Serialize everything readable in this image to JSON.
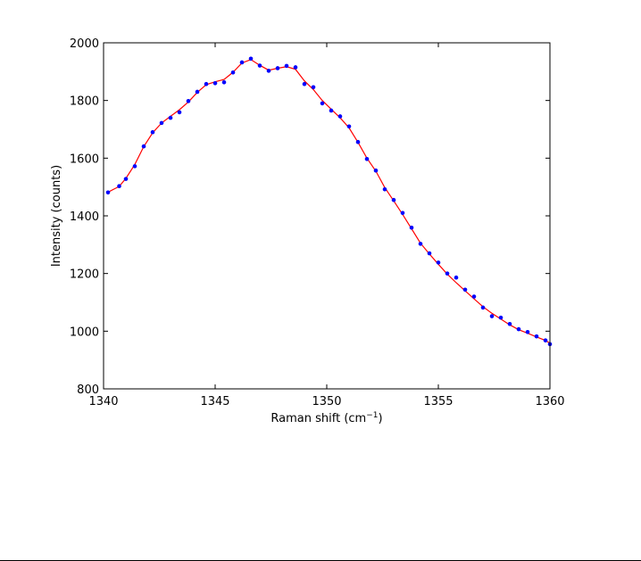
{
  "chart_data": {
    "type": "line",
    "title": "",
    "xlabel": "Raman shift (cm",
    "xlabel_sup": "−1",
    "xlabel_close": ")",
    "ylabel": "Intensity (counts)",
    "xlim": [
      1340,
      1360
    ],
    "ylim": [
      800,
      2000
    ],
    "xticks": [
      1340,
      1345,
      1350,
      1355,
      1360
    ],
    "yticks": [
      800,
      1000,
      1200,
      1400,
      1600,
      1800,
      2000
    ],
    "grid": false,
    "legend": "none",
    "series": [
      {
        "type": "scatter",
        "color": "#0000ff",
        "x": [
          1340.2,
          1340.7,
          1341.0,
          1341.4,
          1341.8,
          1342.2,
          1342.6,
          1343.0,
          1343.4,
          1343.8,
          1344.2,
          1344.6,
          1345.0,
          1345.4,
          1345.8,
          1346.2,
          1346.6,
          1347.0,
          1347.4,
          1347.8,
          1348.2,
          1348.6,
          1349.0,
          1349.4,
          1349.8,
          1350.2,
          1350.6,
          1351.0,
          1351.4,
          1351.8,
          1352.2,
          1352.6,
          1353.0,
          1353.4,
          1353.8,
          1354.2,
          1354.6,
          1355.0,
          1355.4,
          1355.8,
          1356.2,
          1356.6,
          1357.0,
          1357.4,
          1357.8,
          1358.2,
          1358.6,
          1359.0,
          1359.4,
          1359.8,
          1360.0
        ],
        "y": [
          1481,
          1503,
          1528,
          1572,
          1641,
          1690,
          1722,
          1740,
          1759,
          1798,
          1830,
          1857,
          1860,
          1863,
          1897,
          1932,
          1945,
          1921,
          1903,
          1912,
          1920,
          1915,
          1857,
          1846,
          1790,
          1765,
          1745,
          1710,
          1656,
          1597,
          1557,
          1492,
          1455,
          1410,
          1359,
          1303,
          1270,
          1238,
          1200,
          1186,
          1144,
          1120,
          1082,
          1052,
          1047,
          1025,
          1007,
          997,
          982,
          968,
          955
        ]
      },
      {
        "type": "line",
        "color": "#ff0000",
        "x": [
          1340.2,
          1340.7,
          1341.0,
          1341.4,
          1341.8,
          1342.2,
          1342.6,
          1343.0,
          1343.4,
          1343.8,
          1344.2,
          1344.6,
          1345.0,
          1345.4,
          1345.8,
          1346.2,
          1346.6,
          1347.0,
          1347.4,
          1347.8,
          1348.2,
          1348.6,
          1349.0,
          1349.4,
          1349.8,
          1350.2,
          1350.6,
          1351.0,
          1351.4,
          1351.8,
          1352.2,
          1352.6,
          1353.0,
          1353.4,
          1353.8,
          1354.2,
          1354.6,
          1355.0,
          1355.4,
          1355.8,
          1356.2,
          1356.6,
          1357.0,
          1357.4,
          1357.8,
          1358.2,
          1358.6,
          1359.0,
          1359.4,
          1359.8,
          1360.0
        ],
        "y": [
          1482,
          1502,
          1530,
          1578,
          1640,
          1688,
          1722,
          1745,
          1768,
          1795,
          1828,
          1855,
          1865,
          1873,
          1898,
          1930,
          1942,
          1922,
          1905,
          1912,
          1917,
          1908,
          1868,
          1838,
          1800,
          1770,
          1740,
          1705,
          1655,
          1600,
          1555,
          1498,
          1452,
          1405,
          1355,
          1305,
          1268,
          1232,
          1198,
          1168,
          1140,
          1112,
          1085,
          1062,
          1042,
          1022,
          1005,
          993,
          980,
          968,
          958
        ]
      }
    ]
  }
}
